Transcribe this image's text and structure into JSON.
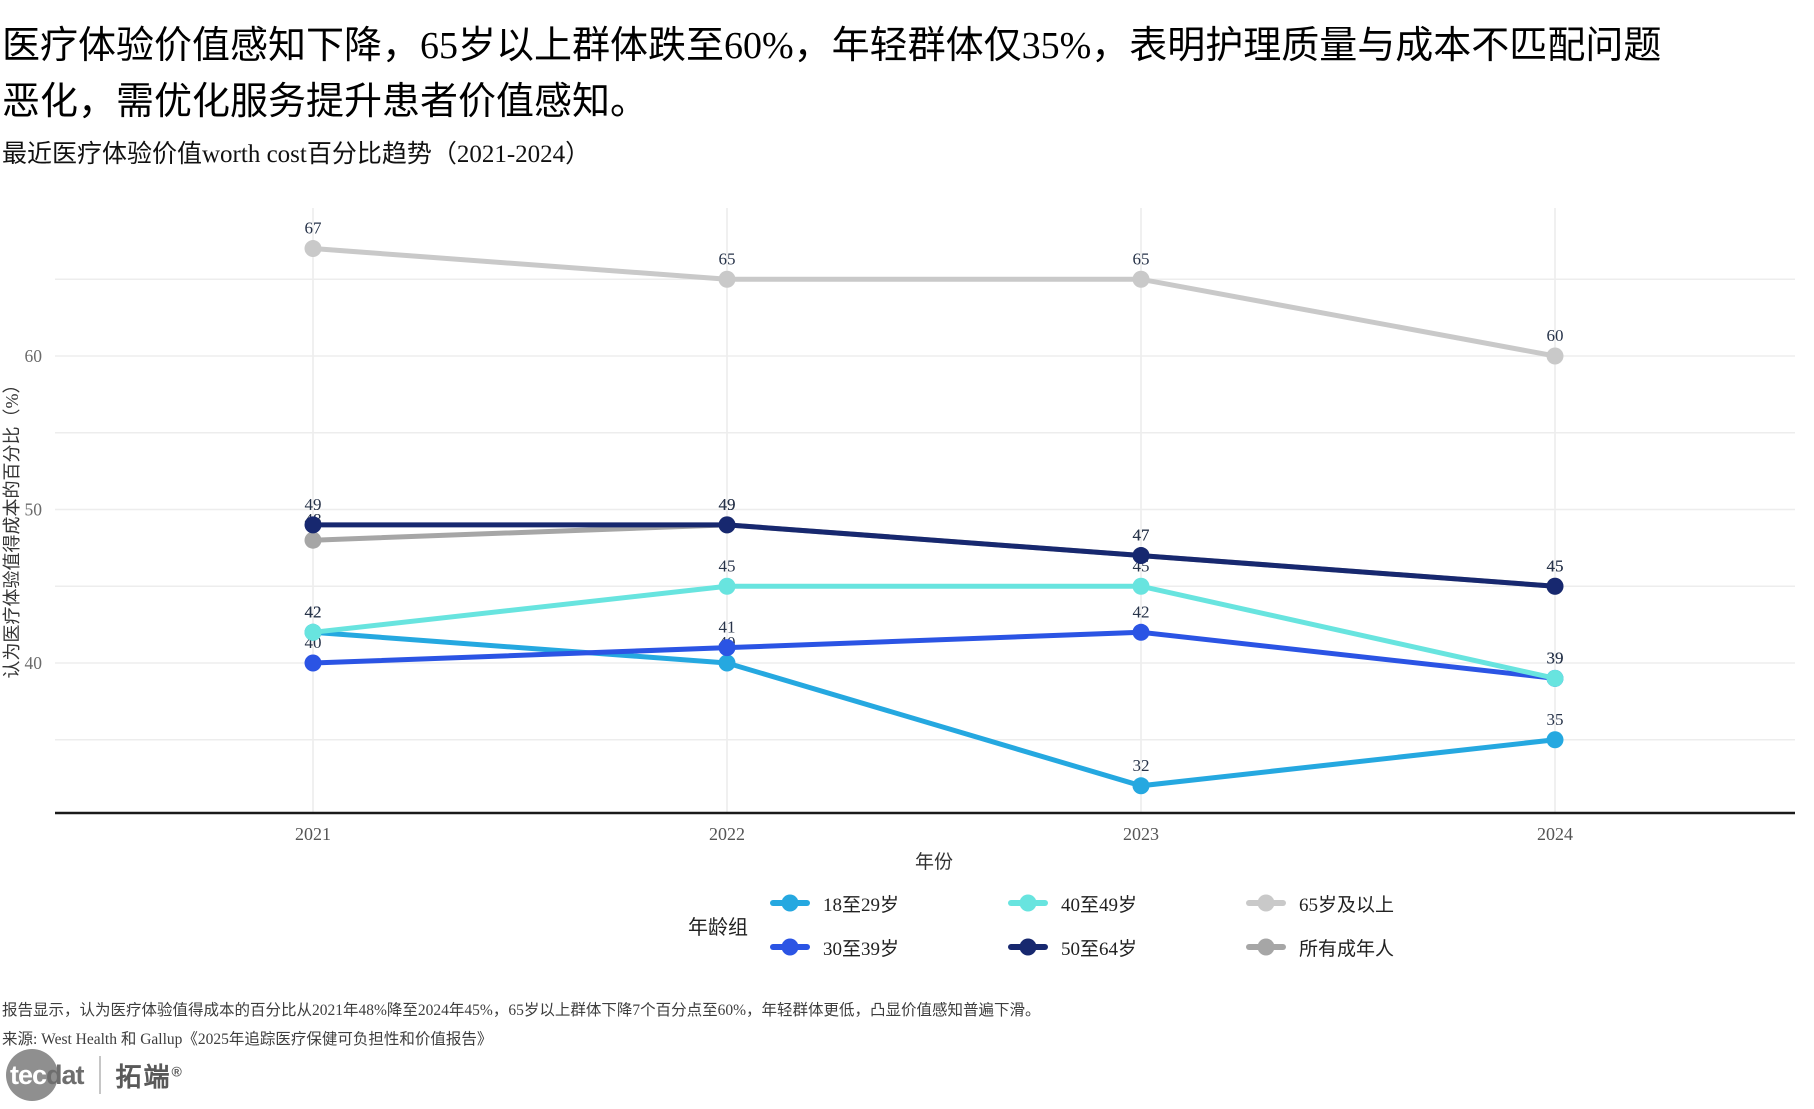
{
  "header": {
    "title_line1": "医疗体验价值感知下降，65岁以上群体跌至60%，年轻群体仅35%，表明护理质量与成本不匹配问题",
    "title_line2": "恶化，需优化服务提升患者价值感知。"
  },
  "chart_data": {
    "type": "line",
    "title": "最近医疗体验价值worth cost百分比趋势（2021-2024）",
    "xlabel": "年份",
    "ylabel": "认为医疗体验值得成本的百分比（%）",
    "x_categories": [
      "2021",
      "2022",
      "2023",
      "2024"
    ],
    "ylim": [
      28,
      69
    ],
    "yticks_labeled": [
      40,
      50,
      60
    ],
    "ygridlines": [
      35,
      40,
      45,
      50,
      55,
      60,
      65
    ],
    "grid": true,
    "legend_title": "年龄组",
    "legend_position": "bottom",
    "series": [
      {
        "id": "age-18-29",
        "name": "18至29岁",
        "color": "#25A8E0",
        "values": [
          42,
          40,
          32,
          35
        ]
      },
      {
        "id": "age-30-39",
        "name": "30至39岁",
        "color": "#2B54E4",
        "values": [
          40,
          41,
          42,
          39
        ]
      },
      {
        "id": "age-40-49",
        "name": "40至49岁",
        "color": "#68E4DF",
        "values": [
          42,
          45,
          45,
          39
        ]
      },
      {
        "id": "age-50-64",
        "name": "50至64岁",
        "color": "#17286F",
        "values": [
          49,
          49,
          47,
          45
        ]
      },
      {
        "id": "age-65-plus",
        "name": "65岁及以上",
        "color": "#C9C9C9",
        "values": [
          67,
          65,
          65,
          60
        ]
      },
      {
        "id": "all-adults",
        "name": "所有成年人",
        "color": "#A6A6A6",
        "values": [
          48,
          49,
          47,
          45
        ]
      }
    ],
    "legend_rows": [
      [
        0,
        2,
        4
      ],
      [
        1,
        3,
        5
      ]
    ],
    "draw_order": [
      4,
      5,
      0,
      1,
      2,
      3
    ],
    "label_color": "#273349",
    "axis_color": "#1a1a1a",
    "grid_color": "#ededed",
    "tick_color": "#6b6b6b",
    "axis_text_color": "#555555",
    "axis_title_color": "#333333"
  },
  "footer": {
    "note": "报告显示，认为医疗体验值得成本的百分比从2021年48%降至2024年45%，65岁以上群体下降7个百分点至60%，年轻群体更低，凸显价值感知普遍下滑。",
    "source": "来源: West Health 和 Gallup《2025年追踪医疗保健可负担性和价值报告》"
  },
  "logo": {
    "tec": "tec",
    "dat": "dat",
    "cn": "拓端",
    "reg": "®"
  }
}
